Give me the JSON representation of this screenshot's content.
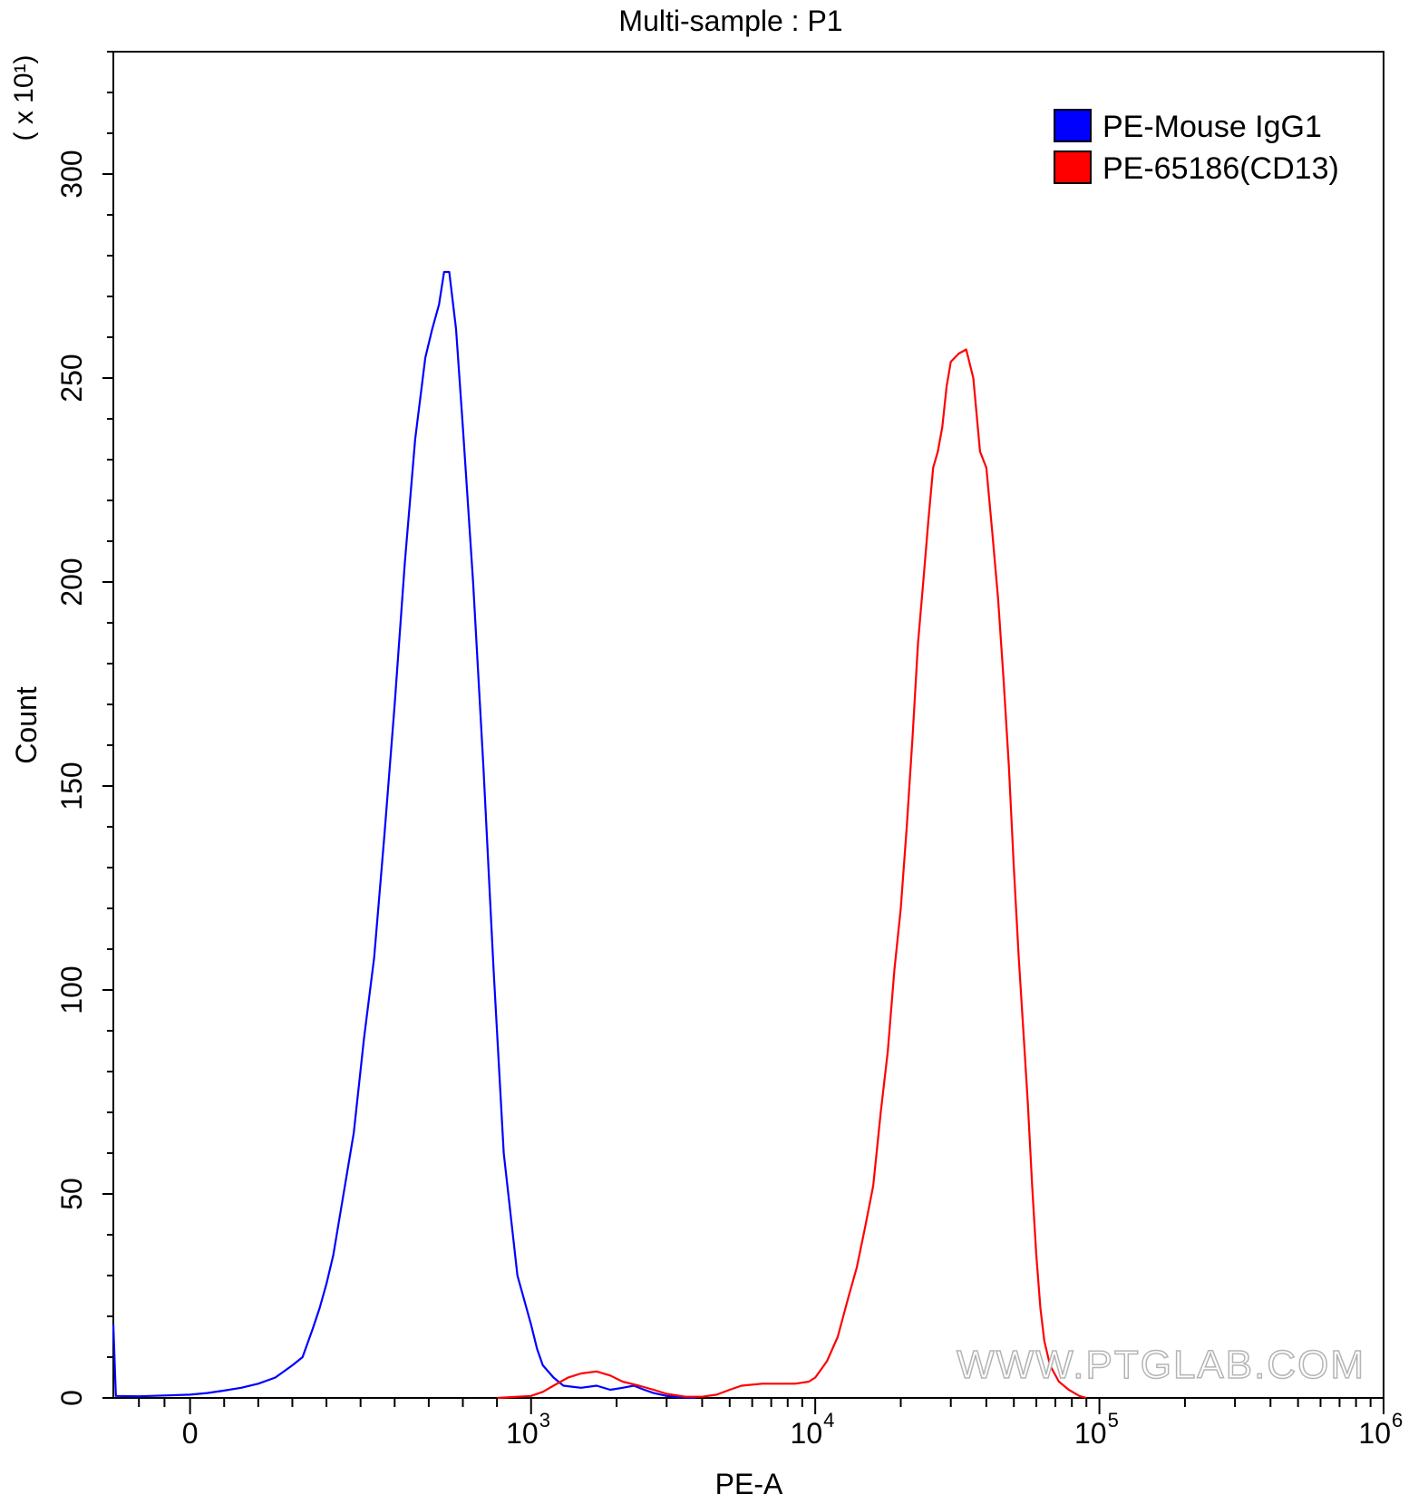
{
  "chart_data": {
    "type": "histogram",
    "title": "Multi-sample : P1",
    "xlabel": "PE-A",
    "ylabel": "Count",
    "y_multiplier": "( x 10¹)",
    "x_scale": "biexponential",
    "xlim": [
      -300,
      1000000
    ],
    "ylim": [
      0,
      330
    ],
    "x_ticks": [
      {
        "value": 0,
        "base": "0",
        "exp": ""
      },
      {
        "value": 1000,
        "base": "10",
        "exp": "3"
      },
      {
        "value": 10000,
        "base": "10",
        "exp": "4"
      },
      {
        "value": 100000,
        "base": "10",
        "exp": "5"
      },
      {
        "value": 1000000,
        "base": "10",
        "exp": "6"
      }
    ],
    "y_ticks": [
      {
        "value": 0,
        "label": "0"
      },
      {
        "value": 50,
        "label": "50"
      },
      {
        "value": 100,
        "label": "100"
      },
      {
        "value": 150,
        "label": "150"
      },
      {
        "value": 200,
        "label": "200"
      },
      {
        "value": 250,
        "label": "250"
      },
      {
        "value": 300,
        "label": "300"
      }
    ],
    "legend_position": "top-right",
    "series": [
      {
        "name": "PE-Mouse IgG1",
        "color": "#0000ff",
        "points": [
          [
            -300,
            18
          ],
          [
            -290,
            0.5
          ],
          [
            -200,
            0.4
          ],
          [
            -100,
            0.6
          ],
          [
            0,
            0.8
          ],
          [
            50,
            1.2
          ],
          [
            100,
            1.8
          ],
          [
            150,
            2.5
          ],
          [
            200,
            3.5
          ],
          [
            250,
            5
          ],
          [
            300,
            8
          ],
          [
            330,
            10
          ],
          [
            360,
            17
          ],
          [
            380,
            22
          ],
          [
            400,
            28
          ],
          [
            420,
            35
          ],
          [
            450,
            50
          ],
          [
            480,
            65
          ],
          [
            510,
            88
          ],
          [
            540,
            108
          ],
          [
            570,
            138
          ],
          [
            600,
            170
          ],
          [
            630,
            205
          ],
          [
            660,
            235
          ],
          [
            690,
            255
          ],
          [
            710,
            262
          ],
          [
            730,
            268
          ],
          [
            745,
            276
          ],
          [
            760,
            276
          ],
          [
            780,
            262
          ],
          [
            800,
            238
          ],
          [
            830,
            200
          ],
          [
            860,
            155
          ],
          [
            890,
            105
          ],
          [
            920,
            60
          ],
          [
            960,
            30
          ],
          [
            1000,
            18
          ],
          [
            1050,
            12
          ],
          [
            1100,
            8
          ],
          [
            1200,
            5
          ],
          [
            1300,
            3
          ],
          [
            1500,
            2.5
          ],
          [
            1700,
            3
          ],
          [
            1900,
            2
          ],
          [
            2100,
            2.5
          ],
          [
            2300,
            3
          ],
          [
            2500,
            2
          ],
          [
            2700,
            1.2
          ],
          [
            3000,
            0.5
          ],
          [
            3300,
            0.2
          ],
          [
            3800,
            0
          ]
        ]
      },
      {
        "name": "PE-65186(CD13)",
        "color": "#ff0000",
        "points": [
          [
            900,
            0
          ],
          [
            1000,
            0.5
          ],
          [
            1100,
            1.5
          ],
          [
            1200,
            3
          ],
          [
            1350,
            5
          ],
          [
            1500,
            6
          ],
          [
            1700,
            6.5
          ],
          [
            1900,
            5.5
          ],
          [
            2100,
            4
          ],
          [
            2400,
            3
          ],
          [
            2700,
            2
          ],
          [
            3000,
            1
          ],
          [
            3500,
            0.3
          ],
          [
            4000,
            0.3
          ],
          [
            4500,
            0.8
          ],
          [
            5000,
            2
          ],
          [
            5500,
            3
          ],
          [
            6500,
            3.5
          ],
          [
            7500,
            3.5
          ],
          [
            8500,
            3.5
          ],
          [
            9500,
            4
          ],
          [
            10000,
            5
          ],
          [
            11000,
            9
          ],
          [
            12000,
            15
          ],
          [
            13000,
            24
          ],
          [
            14000,
            32
          ],
          [
            15000,
            42
          ],
          [
            16000,
            52
          ],
          [
            17000,
            70
          ],
          [
            18000,
            85
          ],
          [
            19000,
            105
          ],
          [
            20000,
            120
          ],
          [
            21000,
            140
          ],
          [
            22000,
            162
          ],
          [
            23000,
            185
          ],
          [
            24000,
            200
          ],
          [
            25000,
            215
          ],
          [
            26000,
            228
          ],
          [
            27000,
            232
          ],
          [
            28000,
            238
          ],
          [
            29000,
            248
          ],
          [
            30000,
            254
          ],
          [
            32000,
            256
          ],
          [
            34000,
            257
          ],
          [
            36000,
            250
          ],
          [
            38000,
            232
          ],
          [
            40000,
            228
          ],
          [
            42000,
            212
          ],
          [
            44000,
            196
          ],
          [
            46000,
            176
          ],
          [
            48000,
            155
          ],
          [
            50000,
            130
          ],
          [
            52000,
            108
          ],
          [
            54000,
            90
          ],
          [
            56000,
            72
          ],
          [
            58000,
            52
          ],
          [
            60000,
            35
          ],
          [
            62000,
            22
          ],
          [
            64000,
            14
          ],
          [
            67000,
            8
          ],
          [
            72000,
            4
          ],
          [
            78000,
            2
          ],
          [
            85000,
            0.5
          ],
          [
            90000,
            0
          ]
        ]
      }
    ],
    "watermark": "WWW.PTGLAB.COM"
  }
}
